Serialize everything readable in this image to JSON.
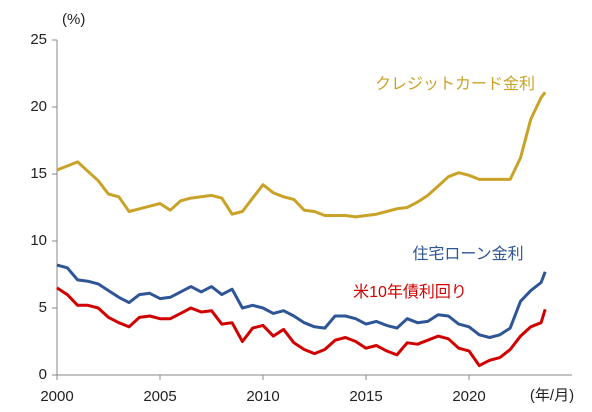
{
  "chart_data": {
    "type": "line",
    "y_unit": "(%)",
    "x_unit": "(年/月)",
    "x": [
      2000,
      2000.5,
      2001,
      2001.5,
      2002,
      2002.5,
      2003,
      2003.5,
      2004,
      2004.5,
      2005,
      2005.5,
      2006,
      2006.5,
      2007,
      2007.5,
      2008,
      2008.5,
      2009,
      2009.5,
      2010,
      2010.5,
      2011,
      2011.5,
      2012,
      2012.5,
      2013,
      2013.5,
      2014,
      2014.5,
      2015,
      2015.5,
      2016,
      2016.5,
      2017,
      2017.5,
      2018,
      2018.5,
      2019,
      2019.5,
      2020,
      2020.5,
      2021,
      2021.5,
      2022,
      2022.5,
      2023,
      2023.5,
      2023.7
    ],
    "series": [
      {
        "name": "クレジットカード金利",
        "color": "#c9a227",
        "values": [
          15.3,
          15.6,
          15.9,
          15.2,
          14.5,
          13.5,
          13.3,
          12.2,
          12.4,
          12.6,
          12.8,
          12.3,
          13.0,
          13.2,
          13.3,
          13.4,
          13.2,
          12.0,
          12.2,
          13.2,
          14.2,
          13.6,
          13.3,
          13.1,
          12.3,
          12.2,
          11.9,
          11.9,
          11.9,
          11.8,
          11.9,
          12.0,
          12.2,
          12.4,
          12.5,
          12.9,
          13.4,
          14.1,
          14.8,
          15.1,
          14.9,
          14.6,
          14.6,
          14.6,
          14.6,
          16.2,
          19.1,
          20.7,
          21.1
        ]
      },
      {
        "name": "住宅ローン金利",
        "color": "#2e5596",
        "values": [
          8.2,
          8.0,
          7.1,
          7.0,
          6.8,
          6.3,
          5.8,
          5.4,
          6.0,
          6.1,
          5.7,
          5.8,
          6.2,
          6.6,
          6.2,
          6.6,
          6.0,
          6.4,
          5.0,
          5.2,
          5.0,
          4.6,
          4.8,
          4.4,
          3.9,
          3.6,
          3.5,
          4.4,
          4.4,
          4.2,
          3.8,
          4.0,
          3.7,
          3.5,
          4.2,
          3.9,
          4.0,
          4.5,
          4.4,
          3.8,
          3.6,
          3.0,
          2.8,
          3.0,
          3.5,
          5.5,
          6.3,
          6.9,
          7.7
        ]
      },
      {
        "name": "米10年債利回り",
        "color": "#d00000",
        "values": [
          6.5,
          6.0,
          5.2,
          5.2,
          5.0,
          4.3,
          3.9,
          3.6,
          4.3,
          4.4,
          4.2,
          4.2,
          4.6,
          5.0,
          4.7,
          4.8,
          3.8,
          3.9,
          2.5,
          3.5,
          3.7,
          2.9,
          3.4,
          2.4,
          1.9,
          1.6,
          1.9,
          2.6,
          2.8,
          2.5,
          2.0,
          2.2,
          1.8,
          1.5,
          2.4,
          2.3,
          2.6,
          2.9,
          2.7,
          2.0,
          1.8,
          0.7,
          1.1,
          1.3,
          1.9,
          2.9,
          3.6,
          3.9,
          4.9
        ]
      }
    ],
    "xlim": [
      2000,
      2025
    ],
    "xticks": [
      2000,
      2005,
      2010,
      2015,
      2020
    ],
    "ylim": [
      0,
      25
    ],
    "yticks": [
      0,
      5,
      10,
      15,
      20,
      25
    ]
  }
}
